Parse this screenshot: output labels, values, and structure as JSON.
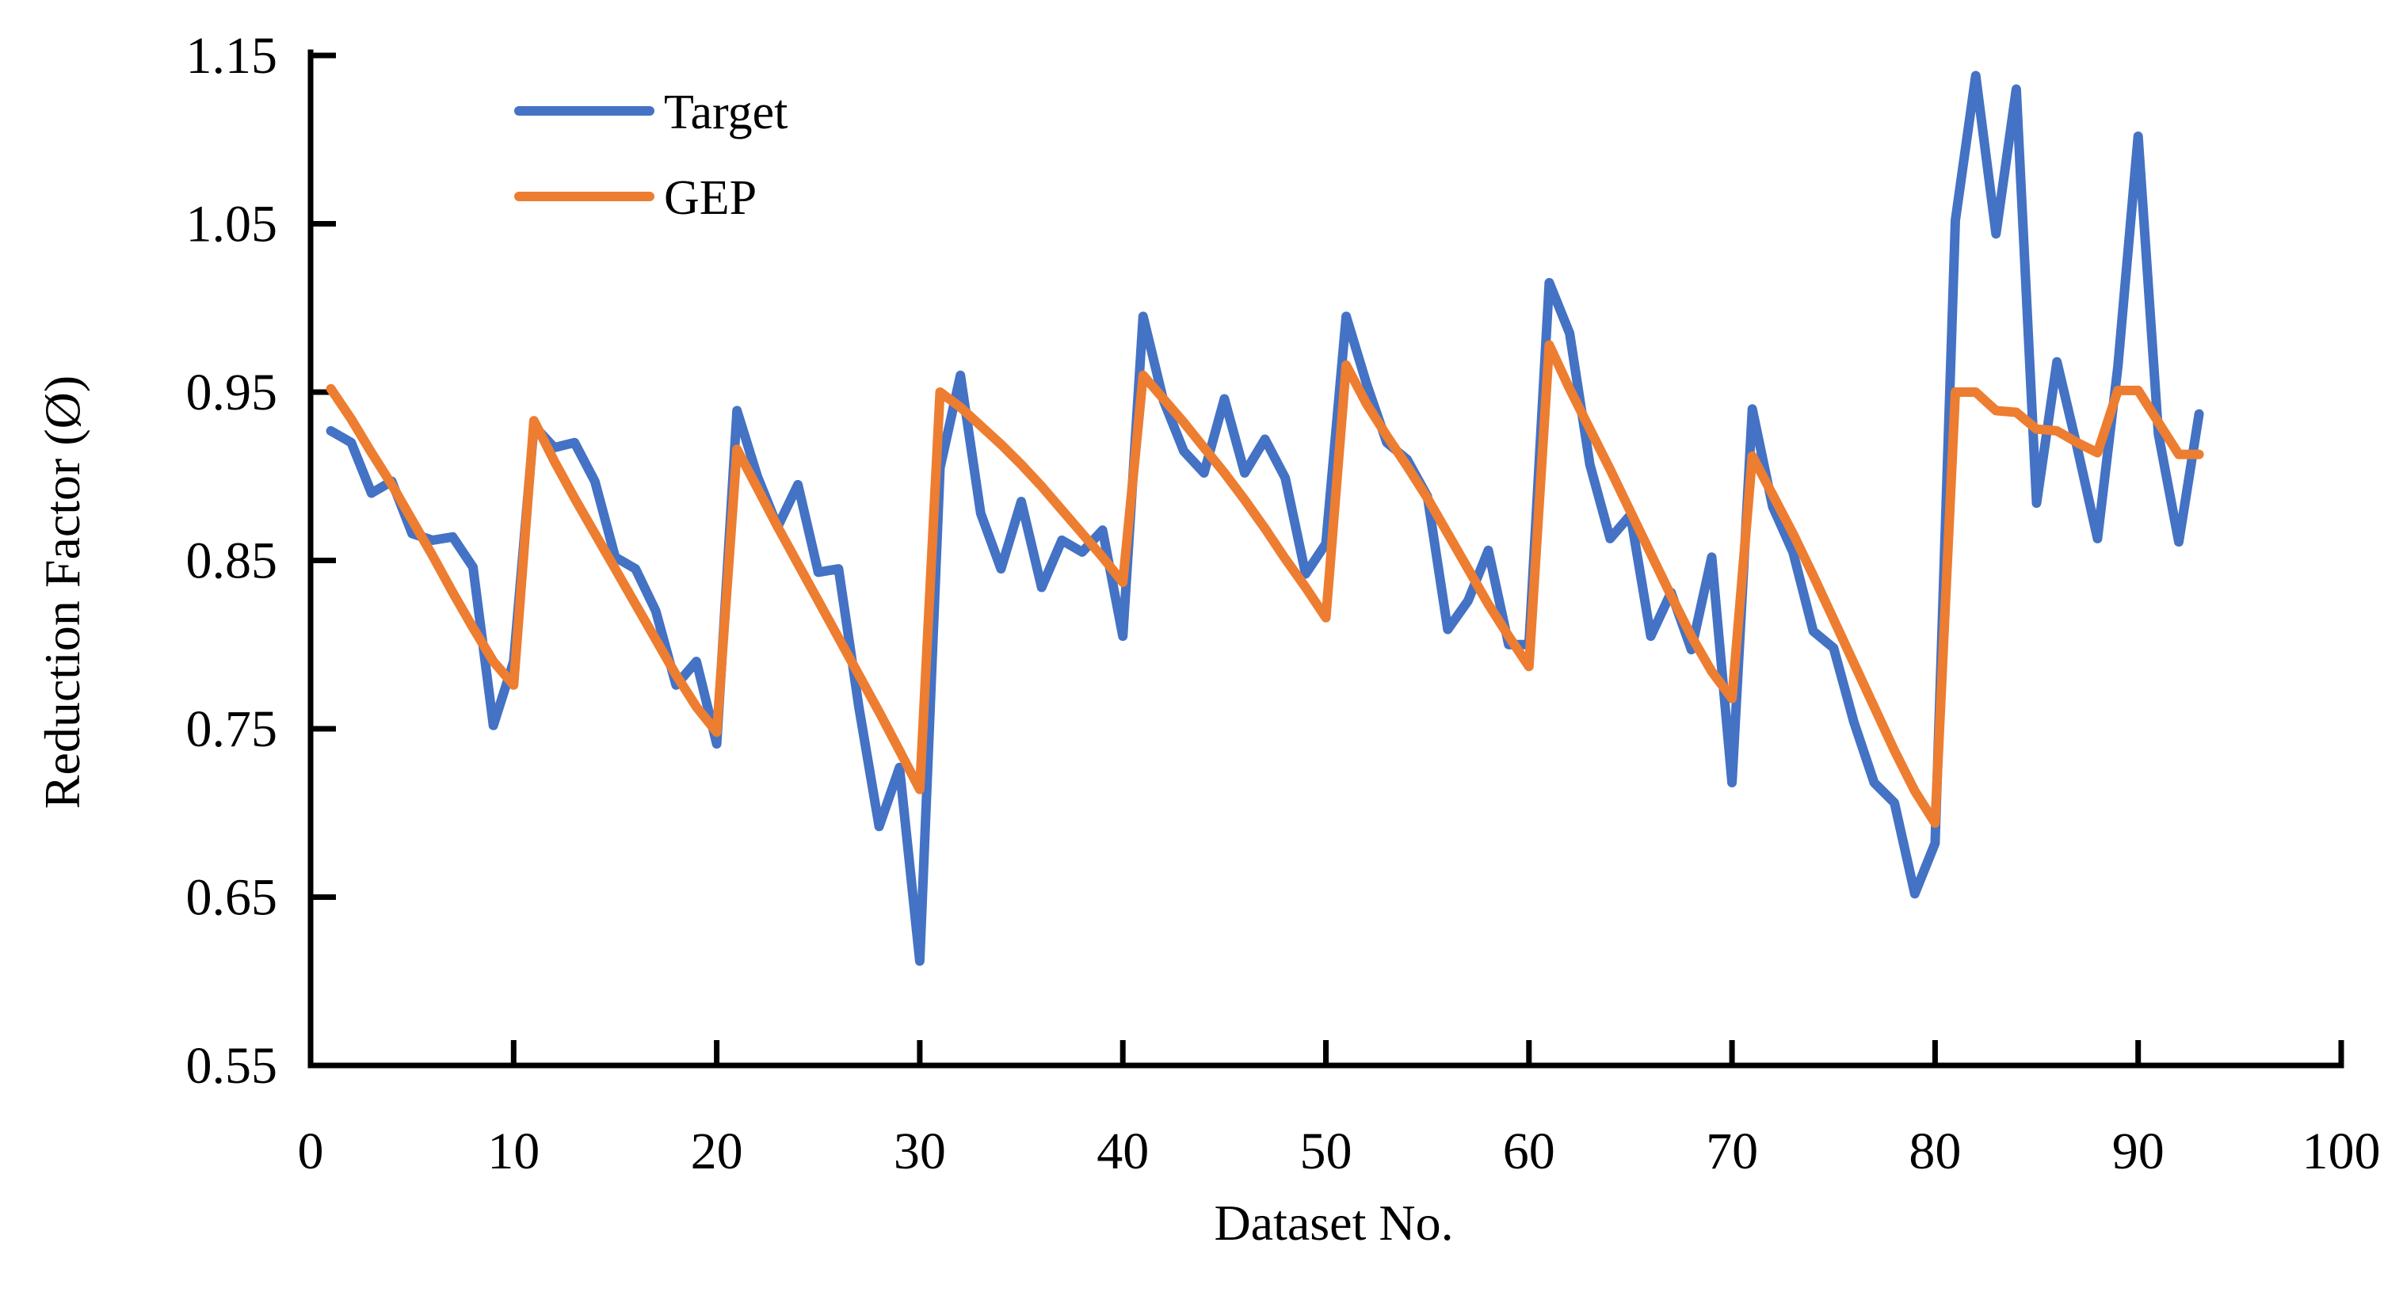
{
  "chart_data": {
    "type": "line",
    "title": "",
    "xlabel": "Dataset No.",
    "ylabel": "Reduction Factor (Ø)",
    "xlim": [
      0,
      100
    ],
    "ylim": [
      0.55,
      1.15
    ],
    "x_ticks": [
      0,
      10,
      20,
      30,
      40,
      50,
      60,
      70,
      80,
      90,
      100
    ],
    "x_tick_labels": [
      "0",
      "10",
      "20",
      "30",
      "40",
      "50",
      "60",
      "70",
      "80",
      "90",
      "100"
    ],
    "y_ticks": [
      0.55,
      0.65,
      0.75,
      0.85,
      0.95,
      1.05,
      1.15
    ],
    "y_tick_labels": [
      "0.55",
      "0.65",
      "0.75",
      "0.85",
      "0.95",
      "1.05",
      "1.15"
    ],
    "grid": false,
    "legend_position": "top-left",
    "x": [
      1,
      2,
      3,
      4,
      5,
      6,
      7,
      8,
      9,
      10,
      11,
      12,
      13,
      14,
      15,
      16,
      17,
      18,
      19,
      20,
      21,
      22,
      23,
      24,
      25,
      26,
      27,
      28,
      29,
      30,
      31,
      32,
      33,
      34,
      35,
      36,
      37,
      38,
      39,
      40,
      41,
      42,
      43,
      44,
      45,
      46,
      47,
      48,
      49,
      50,
      51,
      52,
      53,
      54,
      55,
      56,
      57,
      58,
      59,
      60,
      61,
      62,
      63,
      64,
      65,
      66,
      67,
      68,
      69,
      70,
      71,
      72,
      73,
      74,
      75,
      76,
      77,
      78,
      79,
      80,
      81,
      82,
      83,
      84,
      85,
      86,
      87,
      88,
      89,
      90,
      91,
      92,
      93
    ],
    "series": [
      {
        "name": "Target",
        "color": "#4472C4",
        "values": [
          0.927,
          0.92,
          0.89,
          0.897,
          0.866,
          0.862,
          0.864,
          0.846,
          0.752,
          0.79,
          0.93,
          0.917,
          0.92,
          0.897,
          0.852,
          0.845,
          0.82,
          0.776,
          0.79,
          0.741,
          0.939,
          0.9,
          0.87,
          0.895,
          0.843,
          0.845,
          0.763,
          0.692,
          0.727,
          0.612,
          0.905,
          0.96,
          0.878,
          0.845,
          0.885,
          0.834,
          0.862,
          0.855,
          0.868,
          0.805,
          0.995,
          0.945,
          0.915,
          0.902,
          0.946,
          0.902,
          0.922,
          0.899,
          0.842,
          0.86,
          0.995,
          0.955,
          0.92,
          0.91,
          0.888,
          0.809,
          0.826,
          0.856,
          0.8,
          0.8,
          1.015,
          0.985,
          0.907,
          0.863,
          0.877,
          0.805,
          0.831,
          0.797,
          0.852,
          0.718,
          0.94,
          0.882,
          0.855,
          0.808,
          0.798,
          0.754,
          0.718,
          0.706,
          0.652,
          0.682,
          1.052,
          1.138,
          1.044,
          1.13,
          0.884,
          0.968,
          0.917,
          0.863,
          0.965,
          1.102,
          0.925,
          0.861,
          0.937
        ]
      },
      {
        "name": "GEP",
        "color": "#ED7D31",
        "values": [
          0.952,
          0.934,
          0.914,
          0.895,
          0.874,
          0.853,
          0.831,
          0.81,
          0.79,
          0.776,
          0.933,
          0.909,
          0.887,
          0.866,
          0.845,
          0.824,
          0.803,
          0.782,
          0.763,
          0.748,
          0.916,
          0.893,
          0.87,
          0.848,
          0.826,
          0.804,
          0.782,
          0.76,
          0.737,
          0.714,
          0.95,
          0.941,
          0.93,
          0.919,
          0.907,
          0.894,
          0.88,
          0.866,
          0.852,
          0.837,
          0.96,
          0.946,
          0.932,
          0.917,
          0.902,
          0.886,
          0.869,
          0.851,
          0.834,
          0.816,
          0.966,
          0.943,
          0.924,
          0.906,
          0.887,
          0.866,
          0.845,
          0.824,
          0.805,
          0.787,
          0.978,
          0.952,
          0.928,
          0.904,
          0.879,
          0.854,
          0.829,
          0.805,
          0.784,
          0.768,
          0.912,
          0.889,
          0.866,
          0.841,
          0.815,
          0.789,
          0.763,
          0.737,
          0.713,
          0.694,
          0.95,
          0.95,
          0.939,
          0.938,
          0.928,
          0.927,
          0.92,
          0.914,
          0.951,
          0.951,
          0.932,
          0.913,
          0.913
        ]
      }
    ]
  }
}
